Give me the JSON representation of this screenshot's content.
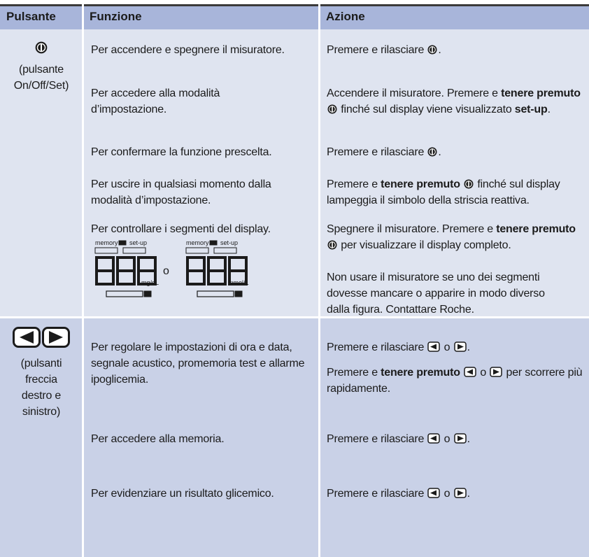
{
  "header": {
    "button": "Pulsante",
    "function": "Funzione",
    "action": "Azione"
  },
  "groups": [
    {
      "button": "(pulsante On/Off/Set)",
      "rows": [
        {
          "function": "Per accendere e spegnere il misuratore.",
          "action": [
            [
              "Premere e rilasciare ",
              "."
            ]
          ]
        },
        {
          "function": "Per accedere alla modalità d’impostazione.",
          "action": [
            [
              "Accendere il misuratore. Premere e ",
              "tenere premuto",
              " finché sul display viene visualizzato ",
              "set-up",
              "."
            ]
          ]
        },
        {
          "function": "Per confermare la funzione prescelta.",
          "action": [
            [
              "Premere e rilasciare ",
              "."
            ]
          ]
        },
        {
          "function": "Per uscire in qualsiasi momento dalla modalità d’impostazione.",
          "action": [
            [
              "Premere e ",
              "tenere premuto",
              " finché sul display lampeggia il simbolo della striscia reattiva."
            ]
          ]
        },
        {
          "function": "Per controllare i segmenti del display.",
          "display": {
            "memory": "memory",
            "setup": "set-up",
            "left_unit": "mg/dL",
            "or": "o",
            "right_unit": "mmol/L"
          },
          "action": [
            [
              "Spegnere il misuratore. Premere e ",
              "tenere premuto",
              " per visualizzare il display completo."
            ],
            [
              "Non usare il misuratore se uno dei segmenti dovesse mancare o apparire in modo diverso dalla figura. Contattare Roche."
            ]
          ]
        }
      ]
    },
    {
      "button": "(pulsanti freccia destro e sinistro)",
      "rows": [
        {
          "function": "Per regolare le impostazioni di ora e data, segnale acustico, promemoria test e allarme ipoglicemia.",
          "action": [
            [
              "Premere e rilasciare ",
              " o ",
              "."
            ],
            [
              "Premere e ",
              "tenere premuto",
              " o ",
              " per scorrere più rapidamente."
            ]
          ]
        },
        {
          "function": "Per accedere alla memoria.",
          "action": [
            [
              "Premere e rilasciare ",
              " o ",
              "."
            ]
          ]
        },
        {
          "function": "Per evidenziare un risultato glicemico.",
          "action": [
            [
              "Premere e rilasciare ",
              " o ",
              "."
            ]
          ]
        }
      ]
    }
  ]
}
